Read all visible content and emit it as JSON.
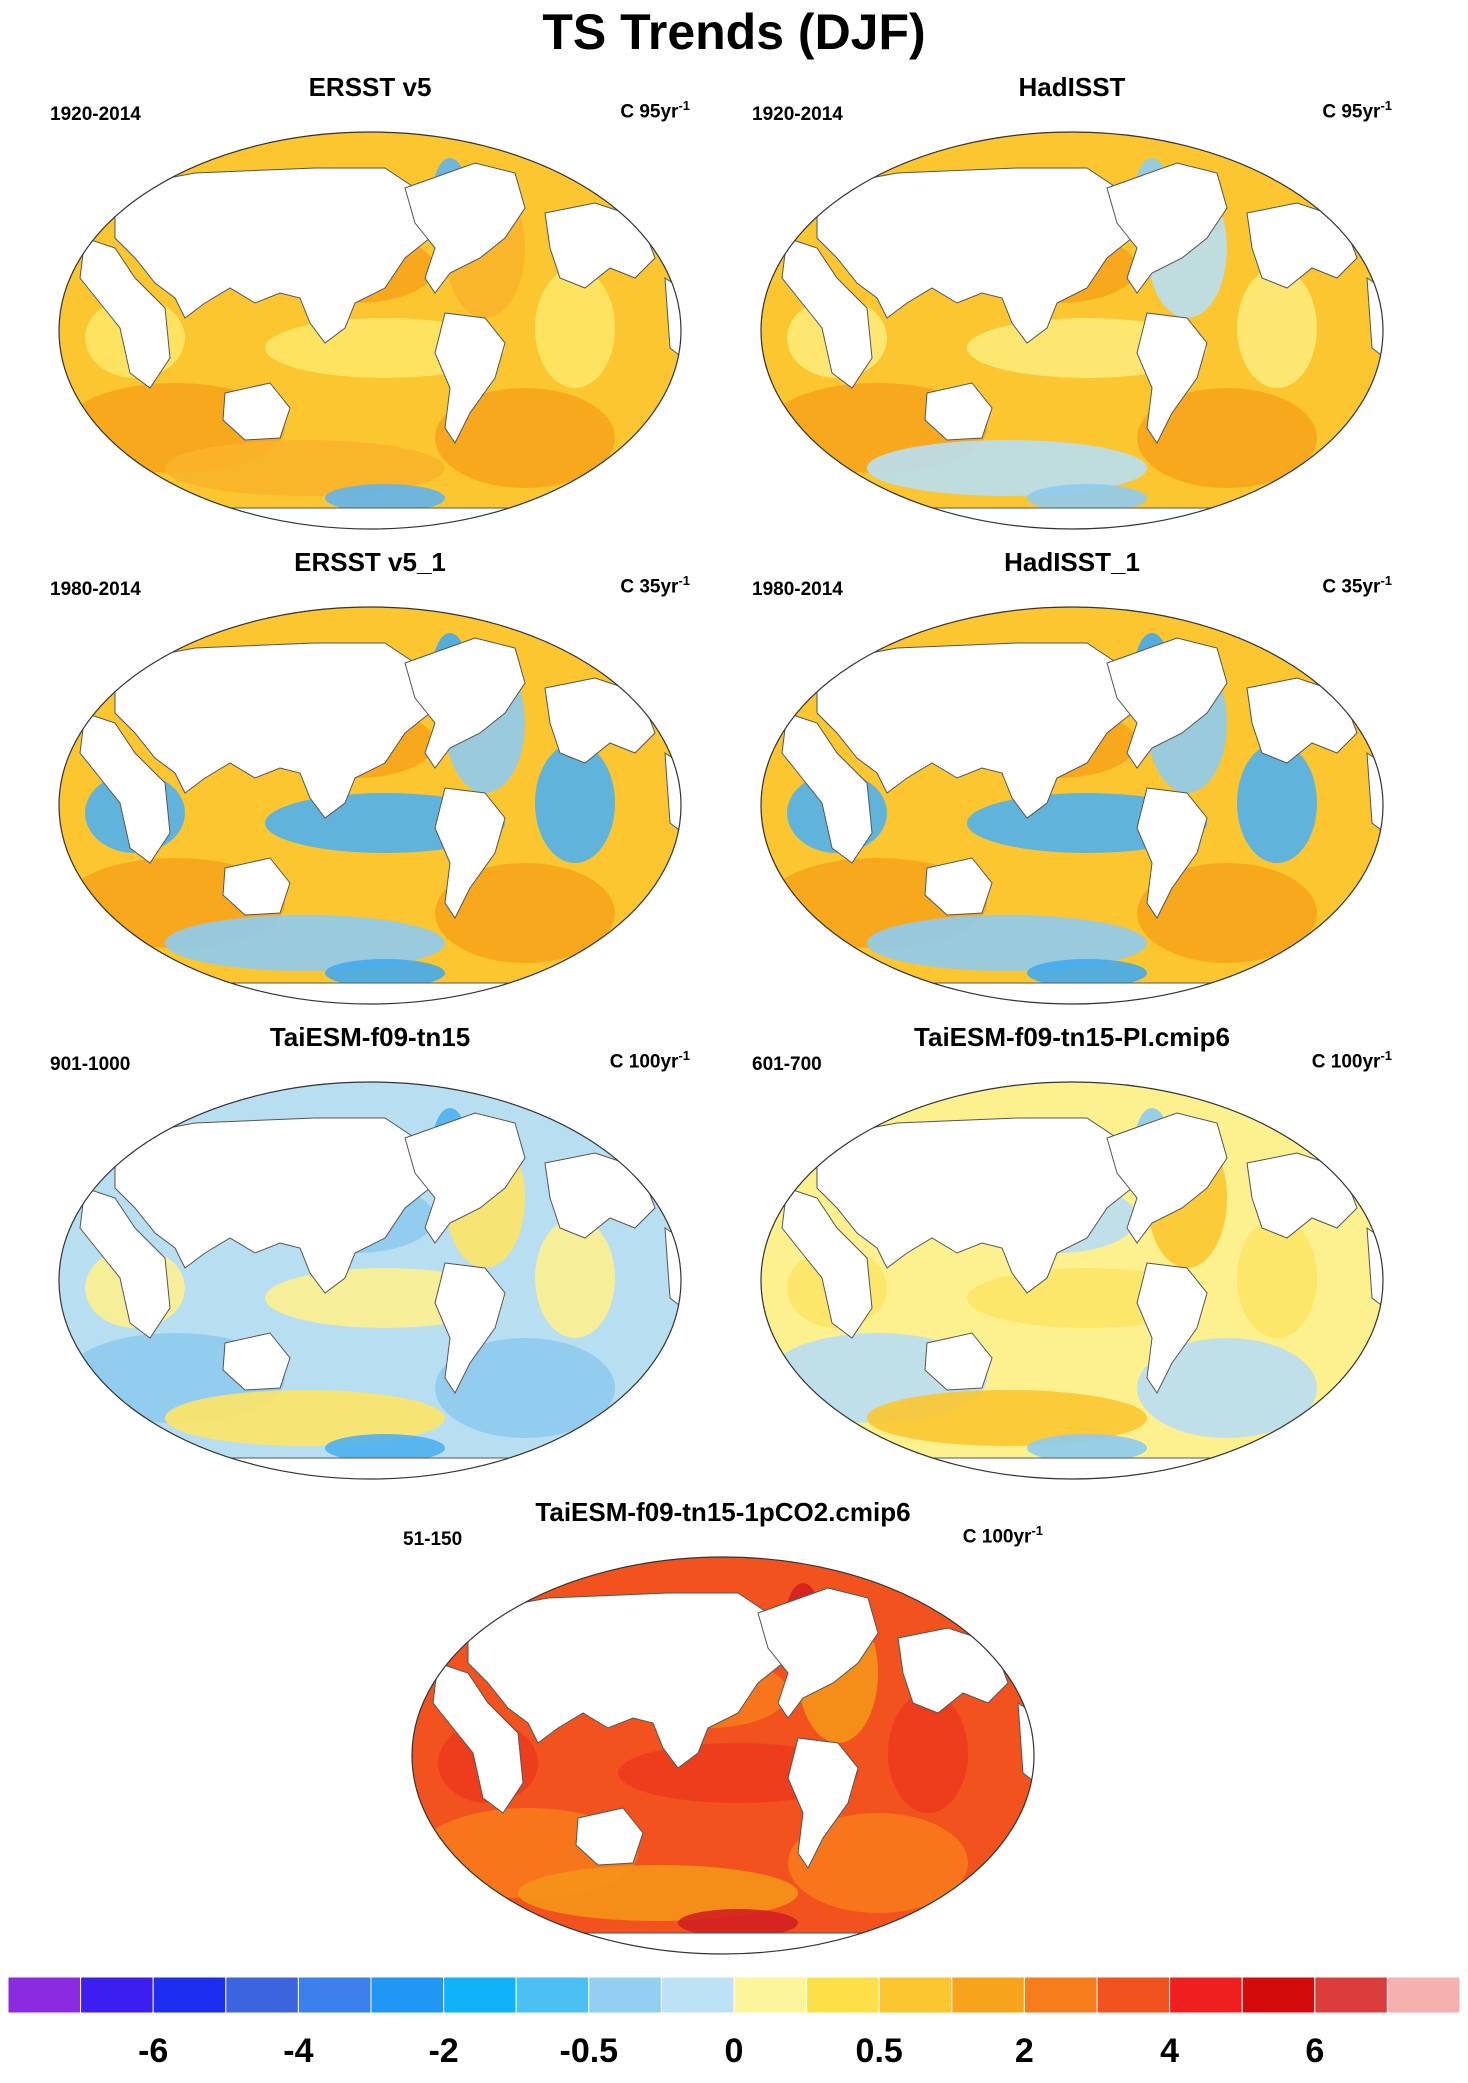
{
  "title": "TS Trends (DJF)",
  "panels": [
    {
      "title": "ERSST v5",
      "period": "1920-2014",
      "unit_prefix": "C 95yr",
      "unit_exp": "-1",
      "colors": {
        "base": "#fbc630",
        "blob1": "#f7a41c",
        "blob2": "#fde566",
        "blob3": "#f9b42a",
        "cold": "#60b4ef"
      }
    },
    {
      "title": "HadISST",
      "period": "1920-2014",
      "unit_prefix": "C 95yr",
      "unit_exp": "-1",
      "colors": {
        "base": "#fbc630",
        "blob1": "#f7a41c",
        "blob2": "#fdea78",
        "blob3": "#b8def2",
        "cold": "#8ecbf0"
      }
    },
    {
      "title": "ERSST v5_1",
      "period": "1980-2014",
      "unit_prefix": "C 35yr",
      "unit_exp": "-1",
      "colors": {
        "base": "#fbc630",
        "blob1": "#f7a41c",
        "blob2": "#4fb0ee",
        "blob3": "#8ecbf0",
        "cold": "#42aaf0"
      }
    },
    {
      "title": "HadISST_1",
      "period": "1980-2014",
      "unit_prefix": "C 35yr",
      "unit_exp": "-1",
      "colors": {
        "base": "#fbc630",
        "blob1": "#f7a41c",
        "blob2": "#4fb0ee",
        "blob3": "#8ecbf0",
        "cold": "#42aaf0"
      }
    },
    {
      "title": "TaiESM-f09-tn15",
      "period": "901-1000",
      "unit_prefix": "C 100yr",
      "unit_exp": "-1",
      "colors": {
        "base": "#b8def2",
        "blob1": "#8ecbf0",
        "blob2": "#fdf08f",
        "blob3": "#fde566",
        "cold": "#4fb0ee"
      }
    },
    {
      "title": "TaiESM-f09-tn15-PI.cmip6",
      "period": "601-700",
      "unit_prefix": "C 100yr",
      "unit_exp": "-1",
      "colors": {
        "base": "#fdf08f",
        "blob1": "#b8def2",
        "blob2": "#fde566",
        "blob3": "#fbc630",
        "cold": "#8ecbf0"
      }
    },
    {
      "title": "TaiESM-f09-tn15-1pCO2.cmip6",
      "period": "51-150",
      "unit_prefix": "C 100yr",
      "unit_exp": "-1",
      "colors": {
        "base": "#f2531e",
        "blob1": "#f77a1c",
        "blob2": "#ec3b1c",
        "blob3": "#f59318",
        "cold": "#d32020"
      }
    }
  ],
  "colorbar": {
    "colors": [
      "#8a2be2",
      "#3d1ef0",
      "#1e2ef0",
      "#3b64de",
      "#3c80ee",
      "#2096f5",
      "#10b2f8",
      "#4cc0f2",
      "#92cff0",
      "#bde2f5",
      "#fdf59c",
      "#fddf48",
      "#fbc630",
      "#f7a41c",
      "#f77d1c",
      "#f2531e",
      "#ef1f1f",
      "#d40b0b",
      "#dc3c3c",
      "#f7b0b0"
    ],
    "labels": [
      "-6",
      "-4",
      "-2",
      "-0.5",
      "0",
      "0.5",
      "2",
      "4",
      "6"
    ]
  }
}
